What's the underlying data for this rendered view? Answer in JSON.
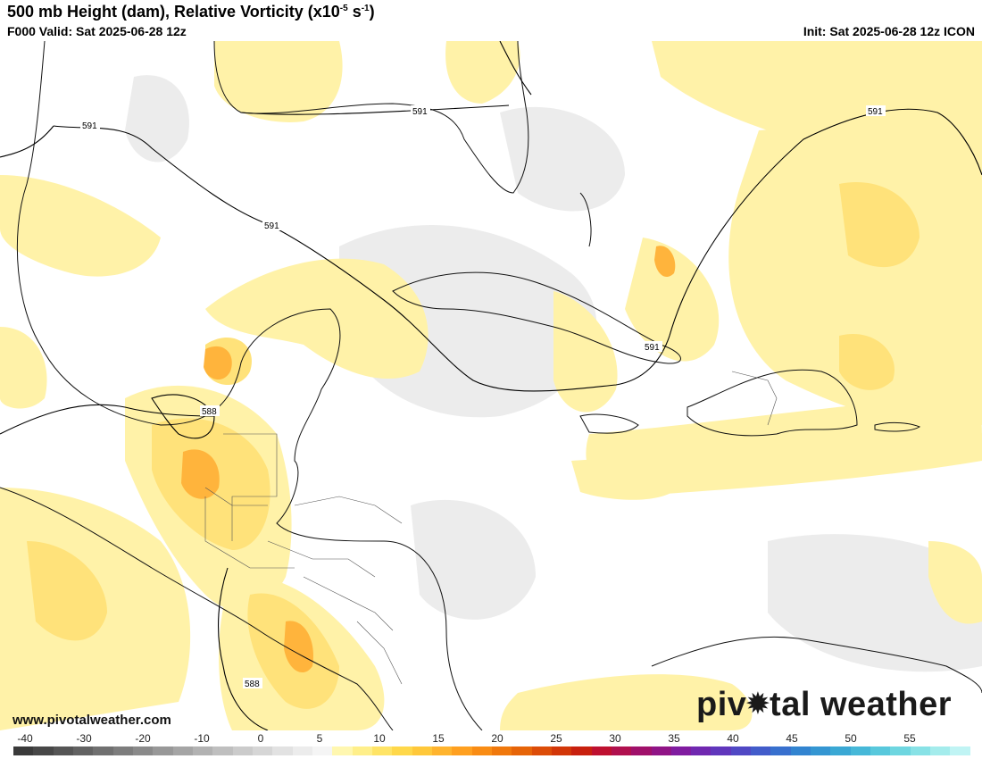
{
  "header": {
    "title_main": "500 mb Height (dam), Relative Vorticity (x10",
    "title_exp1": "-5",
    "title_mid": " s",
    "title_exp2": "-1",
    "title_end": ")",
    "valid": "F000 Valid: Sat 2025-06-28 12z",
    "init": "Init: Sat 2025-06-28 12z ICON"
  },
  "map": {
    "contour_labels": [
      "591",
      "591",
      "591",
      "591",
      "591",
      "588",
      "588"
    ],
    "colors": {
      "ocean": "#ffffff",
      "light_gray": "#ececec",
      "yellow_light": "#fff2a8",
      "yellow": "#ffe27a",
      "orange": "#ffb43c",
      "deep_orange": "#f08c10"
    }
  },
  "footer": {
    "website": "www.pivotalweather.com",
    "logo_left": "piv",
    "logo_right": "tal weather"
  },
  "colorbar": {
    "labels": [
      "-40",
      "-30",
      "-20",
      "-10",
      "0",
      "5",
      "10",
      "15",
      "20",
      "25",
      "30",
      "35",
      "40",
      "45",
      "50",
      "55"
    ]
  }
}
